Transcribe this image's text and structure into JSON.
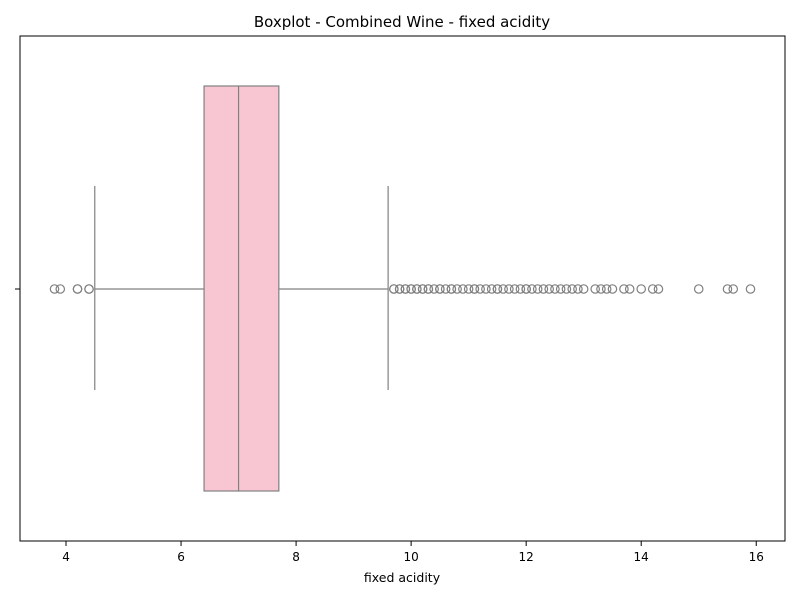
{
  "chart_data": {
    "type": "boxplot",
    "title": "Boxplot - Combined Wine - fixed acidity",
    "xlabel": "fixed acidity",
    "ylabel": "",
    "xlim": [
      3.2,
      16.5
    ],
    "x_ticks": [
      4,
      6,
      8,
      10,
      12,
      14,
      16
    ],
    "orientation": "horizontal",
    "grid": false,
    "legend": "none",
    "box": {
      "whisker_low": 4.5,
      "q1": 6.4,
      "median": 7.0,
      "q3": 7.7,
      "whisker_high": 9.6
    },
    "outliers": [
      3.8,
      3.9,
      4.2,
      4.2,
      4.4,
      4.4,
      9.7,
      9.7,
      9.8,
      9.8,
      9.9,
      9.9,
      10.0,
      10.0,
      10.1,
      10.1,
      10.2,
      10.2,
      10.3,
      10.3,
      10.4,
      10.5,
      10.5,
      10.6,
      10.7,
      10.7,
      10.8,
      10.9,
      11.0,
      11.1,
      11.1,
      11.2,
      11.3,
      11.4,
      11.5,
      11.5,
      11.6,
      11.7,
      11.8,
      11.9,
      12.0,
      12.0,
      12.1,
      12.2,
      12.3,
      12.4,
      12.5,
      12.6,
      12.7,
      12.8,
      12.9,
      13.0,
      13.2,
      13.3,
      13.4,
      13.5,
      13.7,
      13.8,
      14.0,
      14.2,
      14.3,
      15.0,
      15.5,
      15.6,
      15.9
    ],
    "colors": {
      "box_fill": "#f8c6d2",
      "line": "#808080",
      "axis": "#000000"
    }
  }
}
